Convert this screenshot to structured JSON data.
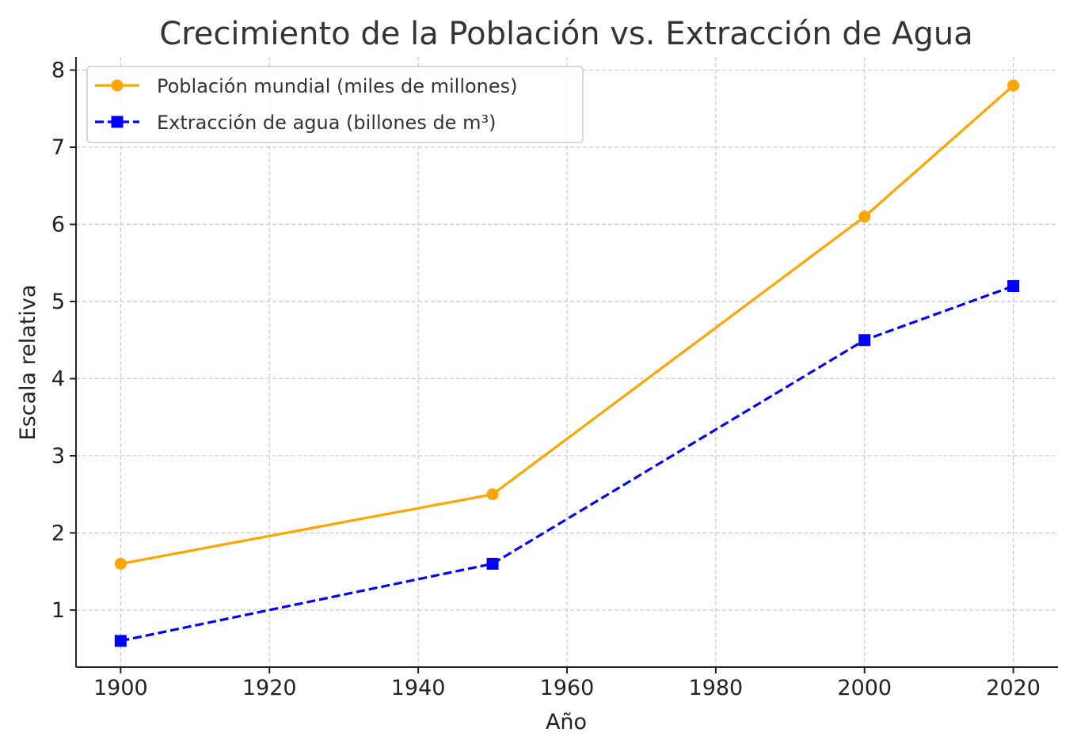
{
  "chart_data": {
    "type": "line",
    "title": "Crecimiento de la Población vs. Extracción de Agua",
    "xlabel": "Año",
    "ylabel": "Escala relativa",
    "xlim": [
      1894,
      2026
    ],
    "ylim": [
      0.26,
      8.17
    ],
    "x_ticks": [
      1900,
      1920,
      1940,
      1960,
      1980,
      2000,
      2020
    ],
    "y_ticks": [
      1,
      2,
      3,
      4,
      5,
      6,
      7,
      8
    ],
    "grid": true,
    "legend_position": "upper-left",
    "series": [
      {
        "name": "Población mundial (miles de millones)",
        "x": [
          1900,
          1950,
          2000,
          2020
        ],
        "values": [
          1.6,
          2.5,
          6.1,
          7.8
        ],
        "color": "#ffa500",
        "line_style": "solid",
        "marker": "circle"
      },
      {
        "name": "Extracción de agua (billones de m³)",
        "x": [
          1900,
          1950,
          2000,
          2020
        ],
        "values": [
          0.6,
          1.6,
          4.5,
          5.2
        ],
        "color": "#0000ff",
        "line_style": "dashed",
        "marker": "square"
      }
    ]
  }
}
